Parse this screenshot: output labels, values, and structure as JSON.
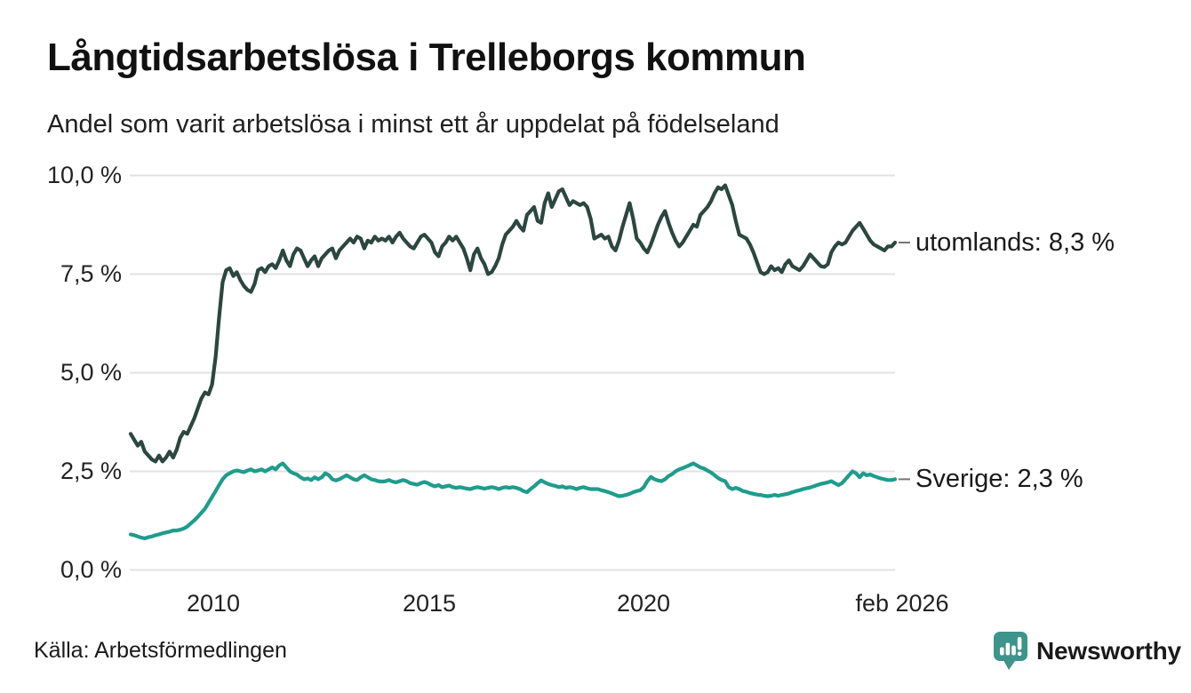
{
  "header": {
    "title": "Långtidsarbetslösa i Trelleborgs kommun",
    "subtitle": "Andel som varit arbetslösa i minst ett år uppdelat på födelseland"
  },
  "source": {
    "label": "Källa: Arbetsförmedlingen"
  },
  "branding": {
    "name": "Newsworthy",
    "color": "#3d948a",
    "icon": "newsworthy-speech-bubble-bars-logo"
  },
  "chart_data": {
    "type": "line",
    "title": "Långtidsarbetslösa i Trelleborgs kommun",
    "subtitle": "Andel som varit arbetslösa i minst ett år uppdelat på födelseland",
    "unit": "%",
    "x_start": "2008-02",
    "x_end": "2026-02",
    "x_interval": "monthly",
    "ylim": [
      0,
      10
    ],
    "grid": true,
    "grid_color": "#e2e2e2",
    "legend_position": "right-end-labels",
    "yticks": [
      {
        "value": 10,
        "label": "10,0 %"
      },
      {
        "value": 7.5,
        "label": "7,5 %"
      },
      {
        "value": 5,
        "label": "5,0 %"
      },
      {
        "value": 2.5,
        "label": "2,5 %"
      },
      {
        "value": 0,
        "label": "0,0 %"
      }
    ],
    "xticks": [
      {
        "label": "2010"
      },
      {
        "label": "2015"
      },
      {
        "label": "2020"
      },
      {
        "label": "feb 2026"
      }
    ],
    "series": [
      {
        "name": "utomlands",
        "color": "#2b473f",
        "end_label": "utomlands: 8,3 %",
        "last_value_label": "8,3 %",
        "last_value": 8.3,
        "values": [
          3.45,
          3.3,
          3.15,
          3.25,
          3.0,
          2.9,
          2.8,
          2.75,
          2.9,
          2.75,
          2.85,
          3.0,
          2.85,
          3.05,
          3.35,
          3.5,
          3.45,
          3.65,
          3.85,
          4.1,
          4.35,
          4.5,
          4.45,
          4.7,
          5.4,
          6.4,
          7.3,
          7.6,
          7.65,
          7.45,
          7.55,
          7.35,
          7.2,
          7.1,
          7.05,
          7.25,
          7.6,
          7.65,
          7.55,
          7.7,
          7.75,
          7.65,
          7.85,
          8.1,
          7.85,
          7.7,
          8.0,
          8.15,
          8.1,
          7.9,
          7.7,
          7.85,
          7.95,
          7.7,
          7.9,
          8.0,
          8.1,
          8.15,
          7.9,
          8.1,
          8.2,
          8.3,
          8.4,
          8.3,
          8.45,
          8.4,
          8.15,
          8.35,
          8.3,
          8.45,
          8.35,
          8.4,
          8.35,
          8.45,
          8.3,
          8.45,
          8.55,
          8.4,
          8.3,
          8.2,
          8.15,
          8.3,
          8.45,
          8.5,
          8.4,
          8.3,
          8.05,
          7.95,
          8.2,
          8.3,
          8.45,
          8.35,
          8.45,
          8.3,
          8.15,
          7.9,
          7.6,
          8.0,
          8.15,
          7.9,
          7.75,
          7.5,
          7.55,
          7.7,
          7.9,
          8.25,
          8.5,
          8.6,
          8.7,
          8.85,
          8.7,
          8.6,
          9.0,
          9.1,
          9.2,
          8.85,
          8.8,
          9.3,
          9.55,
          9.2,
          9.4,
          9.6,
          9.65,
          9.45,
          9.25,
          9.35,
          9.3,
          9.25,
          9.3,
          9.2,
          8.9,
          8.4,
          8.45,
          8.5,
          8.4,
          8.45,
          8.2,
          8.1,
          8.35,
          8.7,
          9.0,
          9.3,
          8.9,
          8.4,
          8.3,
          8.15,
          8.05,
          8.25,
          8.5,
          8.75,
          8.95,
          9.1,
          8.8,
          8.55,
          8.35,
          8.2,
          8.3,
          8.45,
          8.6,
          8.75,
          8.7,
          9.0,
          9.1,
          9.2,
          9.35,
          9.55,
          9.7,
          9.65,
          9.75,
          9.5,
          9.25,
          8.85,
          8.5,
          8.45,
          8.4,
          8.25,
          8.05,
          7.8,
          7.55,
          7.5,
          7.55,
          7.7,
          7.6,
          7.65,
          7.55,
          7.75,
          7.85,
          7.7,
          7.65,
          7.6,
          7.7,
          7.85,
          8.0,
          7.9,
          7.8,
          7.7,
          7.68,
          7.75,
          8.05,
          8.2,
          8.3,
          8.25,
          8.3,
          8.45,
          8.6,
          8.7,
          8.8,
          8.65,
          8.5,
          8.35,
          8.25,
          8.2,
          8.15,
          8.1,
          8.2,
          8.2,
          8.3
        ]
      },
      {
        "name": "Sverige",
        "color": "#1f9c8c",
        "end_label": "Sverige: 2,3 %",
        "last_value_label": "2,3 %",
        "last_value": 2.3,
        "values": [
          0.9,
          0.88,
          0.85,
          0.82,
          0.8,
          0.83,
          0.85,
          0.88,
          0.9,
          0.93,
          0.95,
          0.97,
          1.0,
          1.0,
          1.02,
          1.05,
          1.1,
          1.18,
          1.26,
          1.35,
          1.45,
          1.55,
          1.7,
          1.85,
          2.0,
          2.15,
          2.3,
          2.4,
          2.45,
          2.5,
          2.52,
          2.5,
          2.48,
          2.52,
          2.55,
          2.5,
          2.52,
          2.55,
          2.5,
          2.55,
          2.6,
          2.55,
          2.65,
          2.7,
          2.6,
          2.5,
          2.45,
          2.42,
          2.35,
          2.3,
          2.32,
          2.28,
          2.35,
          2.3,
          2.35,
          2.45,
          2.4,
          2.3,
          2.27,
          2.3,
          2.35,
          2.4,
          2.35,
          2.3,
          2.28,
          2.35,
          2.4,
          2.35,
          2.3,
          2.28,
          2.25,
          2.24,
          2.25,
          2.28,
          2.24,
          2.22,
          2.25,
          2.28,
          2.25,
          2.2,
          2.18,
          2.16,
          2.2,
          2.23,
          2.2,
          2.15,
          2.12,
          2.15,
          2.1,
          2.12,
          2.14,
          2.1,
          2.08,
          2.1,
          2.08,
          2.06,
          2.05,
          2.08,
          2.1,
          2.08,
          2.06,
          2.08,
          2.1,
          2.08,
          2.05,
          2.08,
          2.1,
          2.08,
          2.1,
          2.08,
          2.05,
          2.0,
          1.97,
          2.05,
          2.12,
          2.2,
          2.27,
          2.22,
          2.18,
          2.15,
          2.13,
          2.1,
          2.12,
          2.08,
          2.1,
          2.08,
          2.05,
          2.08,
          2.1,
          2.07,
          2.05,
          2.05,
          2.05,
          2.02,
          2.0,
          1.97,
          1.94,
          1.9,
          1.87,
          1.88,
          1.9,
          1.93,
          1.97,
          2.0,
          2.02,
          2.1,
          2.25,
          2.36,
          2.3,
          2.27,
          2.25,
          2.3,
          2.38,
          2.43,
          2.5,
          2.55,
          2.58,
          2.62,
          2.66,
          2.7,
          2.65,
          2.6,
          2.57,
          2.52,
          2.47,
          2.4,
          2.33,
          2.28,
          2.25,
          2.1,
          2.05,
          2.08,
          2.05,
          2.0,
          1.98,
          1.95,
          1.93,
          1.91,
          1.9,
          1.88,
          1.87,
          1.88,
          1.9,
          1.88,
          1.9,
          1.92,
          1.94,
          1.97,
          2.0,
          2.02,
          2.05,
          2.07,
          2.09,
          2.12,
          2.15,
          2.18,
          2.2,
          2.22,
          2.25,
          2.2,
          2.15,
          2.2,
          2.3,
          2.4,
          2.5,
          2.45,
          2.35,
          2.45,
          2.4,
          2.42,
          2.38,
          2.35,
          2.32,
          2.3,
          2.28,
          2.28,
          2.3
        ]
      }
    ]
  }
}
